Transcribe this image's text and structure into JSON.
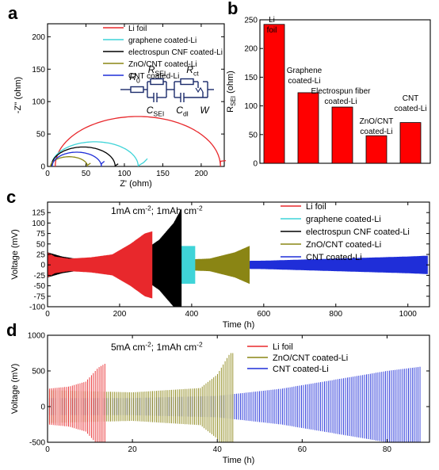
{
  "colors": {
    "red": "#e8282c",
    "cyan": "#3fd4d8",
    "black": "#000000",
    "olive": "#8a8514",
    "blue": "#1f2ed8",
    "bar_fill": "#ff0000"
  },
  "chart_data": [
    {
      "panel": "a",
      "type": "line",
      "subtype": "nyquist",
      "xlabel": "Z' (ohm)",
      "ylabel": "-Z'' (ohm)",
      "xlim": [
        0,
        230
      ],
      "ylim": [
        0,
        220
      ],
      "xticks": [
        0,
        50,
        100,
        150,
        200
      ],
      "yticks": [
        0,
        50,
        100,
        150,
        200
      ],
      "legend_position": "top-right",
      "circuit": {
        "R0": "R",
        "R0_sub": "0",
        "RSEI": "R",
        "RSEI_sub": "SEI",
        "Rct": "R",
        "Rct_sub": "ct",
        "CSEI": "C",
        "CSEI_sub": "SEI",
        "Cdl": "C",
        "Cdl_sub": "dl",
        "W": "W"
      },
      "series": [
        {
          "name": "Li foil",
          "color": "#e8282c",
          "r0": 10,
          "rsum": 225,
          "peak": 77,
          "tail": [
            [
              225,
              8
            ],
            [
              232,
              9
            ]
          ]
        },
        {
          "name": "graphene coated-Li",
          "color": "#3fd4d8",
          "r0": 5,
          "rsum": 118,
          "peak": 38,
          "tail": [
            [
              118,
              1
            ],
            [
              125,
              6
            ],
            [
              130,
              12
            ]
          ]
        },
        {
          "name": "electrospun CNF coated-Li",
          "color": "#000000",
          "r0": 5,
          "rsum": 88,
          "peak": 30,
          "tail": [
            [
              88,
              1
            ],
            [
              92,
              4
            ]
          ]
        },
        {
          "name": "ZnO/CNT coated-Li",
          "color": "#8a8514",
          "r0": 4,
          "rsum": 52,
          "peak": 15,
          "tail": [
            [
              52,
              2
            ],
            [
              56,
              5
            ]
          ]
        },
        {
          "name": "CNT coated-Li",
          "color": "#1f2ed8",
          "r0": 6,
          "rsum": 70,
          "peak": 22,
          "tail": [
            [
              70,
              4
            ],
            [
              74,
              8
            ]
          ]
        }
      ]
    },
    {
      "panel": "b",
      "type": "bar",
      "ylabel": "R",
      "ylabel_sub": "SEI",
      "ylabel_suffix": " (ohm)",
      "ylim": [
        0,
        250
      ],
      "yticks": [
        0,
        50,
        100,
        150,
        200,
        250
      ],
      "categories": [
        [
          "Li",
          "foil"
        ],
        [
          "Graphene",
          "coated-Li"
        ],
        [
          "Electrospun fiber",
          "coated-Li"
        ],
        [
          "ZnO/CNT",
          "coated-Li"
        ],
        [
          "CNT",
          "coated-Li"
        ]
      ],
      "values": [
        242,
        123,
        98,
        48,
        71
      ]
    },
    {
      "panel": "c",
      "type": "line",
      "subtype": "cycling",
      "annotation": "1mA cm<sup>-2</sup>; 1mAh cm<sup>-2</sup>",
      "annotation_parts": [
        "1mA cm",
        "-2",
        "; 1mAh cm",
        "-2"
      ],
      "xlabel": "Time (h)",
      "ylabel": "Voltage (mV)",
      "xlim": [
        0,
        1060
      ],
      "ylim": [
        -100,
        150
      ],
      "xticks": [
        0,
        200,
        400,
        600,
        800,
        1000
      ],
      "yticks": [
        -100,
        -75,
        -50,
        -25,
        0,
        25,
        50,
        75,
        100,
        125
      ],
      "legend_position": "top-right",
      "series": [
        {
          "name": "Li foil",
          "color": "#e8282c",
          "t_end": 290,
          "envelope": [
            [
              0,
              30
            ],
            [
              20,
              20
            ],
            [
              60,
              15
            ],
            [
              120,
              18
            ],
            [
              180,
              25
            ],
            [
              230,
              50
            ],
            [
              270,
              75
            ],
            [
              290,
              80
            ]
          ]
        },
        {
          "name": "graphene coated-Li",
          "color": "#3fd4d8",
          "t_end": 410,
          "envelope": [
            [
              0,
              20
            ],
            [
              60,
              12
            ],
            [
              200,
              12
            ],
            [
              360,
              15
            ],
            [
              370,
              45
            ],
            [
              410,
              45
            ]
          ]
        },
        {
          "name": "electrospun CNF coated-Li",
          "color": "#000000",
          "t_end": 372,
          "envelope": [
            [
              0,
              30
            ],
            [
              40,
              20
            ],
            [
              100,
              12
            ],
            [
              200,
              15
            ],
            [
              260,
              30
            ],
            [
              310,
              60
            ],
            [
              350,
              100
            ],
            [
              372,
              135
            ]
          ]
        },
        {
          "name": "ZnO/CNT coated-Li",
          "color": "#8a8514",
          "t_end": 560,
          "envelope": [
            [
              0,
              15
            ],
            [
              300,
              10
            ],
            [
              450,
              15
            ],
            [
              520,
              30
            ],
            [
              560,
              45
            ]
          ]
        },
        {
          "name": "CNT coated-Li",
          "color": "#1f2ed8",
          "t_end": 1055,
          "envelope": [
            [
              0,
              10
            ],
            [
              300,
              8
            ],
            [
              600,
              10
            ],
            [
              800,
              15
            ],
            [
              1000,
              20
            ],
            [
              1055,
              22
            ]
          ]
        }
      ]
    },
    {
      "panel": "d",
      "type": "line",
      "subtype": "cycling",
      "annotation_parts": [
        "5mA cm",
        "-2",
        "; 1mAh cm",
        "-2"
      ],
      "xlabel": "Time (h)",
      "ylabel": "Voltage (mV)",
      "xlim": [
        0,
        90
      ],
      "ylim": [
        -500,
        1000
      ],
      "xticks": [
        0,
        20,
        40,
        60,
        80
      ],
      "yticks": [
        -500,
        0,
        500,
        1000
      ],
      "legend_position": "top-center",
      "series": [
        {
          "name": "Li foil",
          "color": "#e8282c",
          "t_end": 13.5,
          "envelope": [
            [
              0,
              250
            ],
            [
              5,
              280
            ],
            [
              9,
              350
            ],
            [
              12,
              550
            ],
            [
              13.5,
              600
            ]
          ]
        },
        {
          "name": "ZnO/CNT coated-Li",
          "color": "#8a8514",
          "t_end": 44,
          "envelope": [
            [
              0,
              230
            ],
            [
              20,
              200
            ],
            [
              36,
              260
            ],
            [
              40,
              450
            ],
            [
              43,
              750
            ],
            [
              44,
              750
            ]
          ]
        },
        {
          "name": "CNT coated-Li",
          "color": "#1f2ed8",
          "t_end": 88,
          "envelope": [
            [
              0,
              120
            ],
            [
              20,
              120
            ],
            [
              40,
              150
            ],
            [
              55,
              250
            ],
            [
              70,
              400
            ],
            [
              80,
              500
            ],
            [
              88,
              560
            ]
          ]
        }
      ]
    }
  ]
}
